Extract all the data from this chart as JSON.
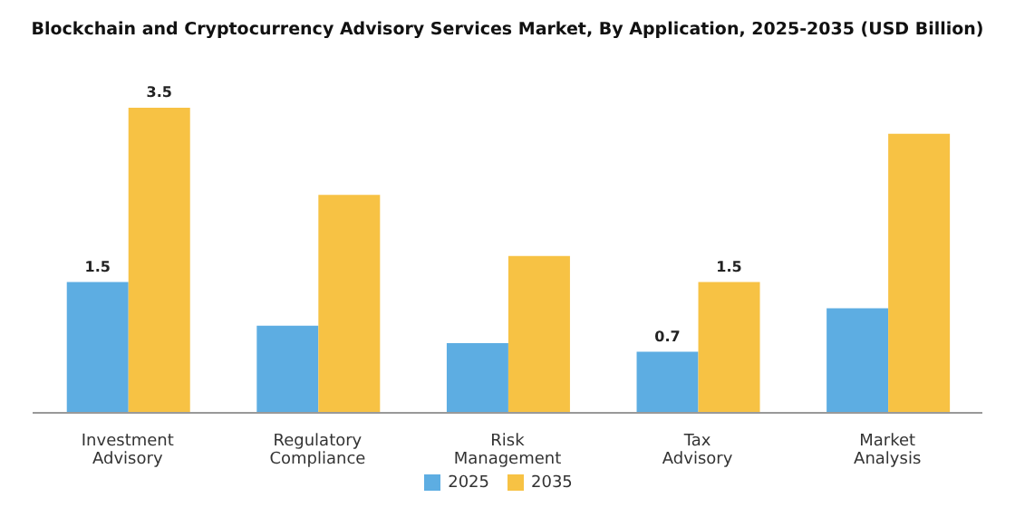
{
  "chart_data": {
    "type": "bar",
    "title": "Blockchain and Cryptocurrency Advisory Services Market, By Application, 2025-2035 (USD Billion)",
    "categories": [
      "Investment Advisory",
      "Regulatory Compliance",
      "Risk Management",
      "Tax Advisory",
      "Market Analysis"
    ],
    "series": [
      {
        "name": "2025",
        "color": "#5dade2",
        "values": [
          1.5,
          1.0,
          0.8,
          0.7,
          1.2
        ],
        "value_labels": [
          "1.5",
          null,
          null,
          "0.7",
          null
        ]
      },
      {
        "name": "2035",
        "color": "#f7c244",
        "values": [
          3.5,
          2.5,
          1.8,
          1.5,
          3.2
        ],
        "value_labels": [
          "3.5",
          null,
          null,
          "1.5",
          null
        ]
      }
    ],
    "legend": "bottom",
    "grid": false
  }
}
